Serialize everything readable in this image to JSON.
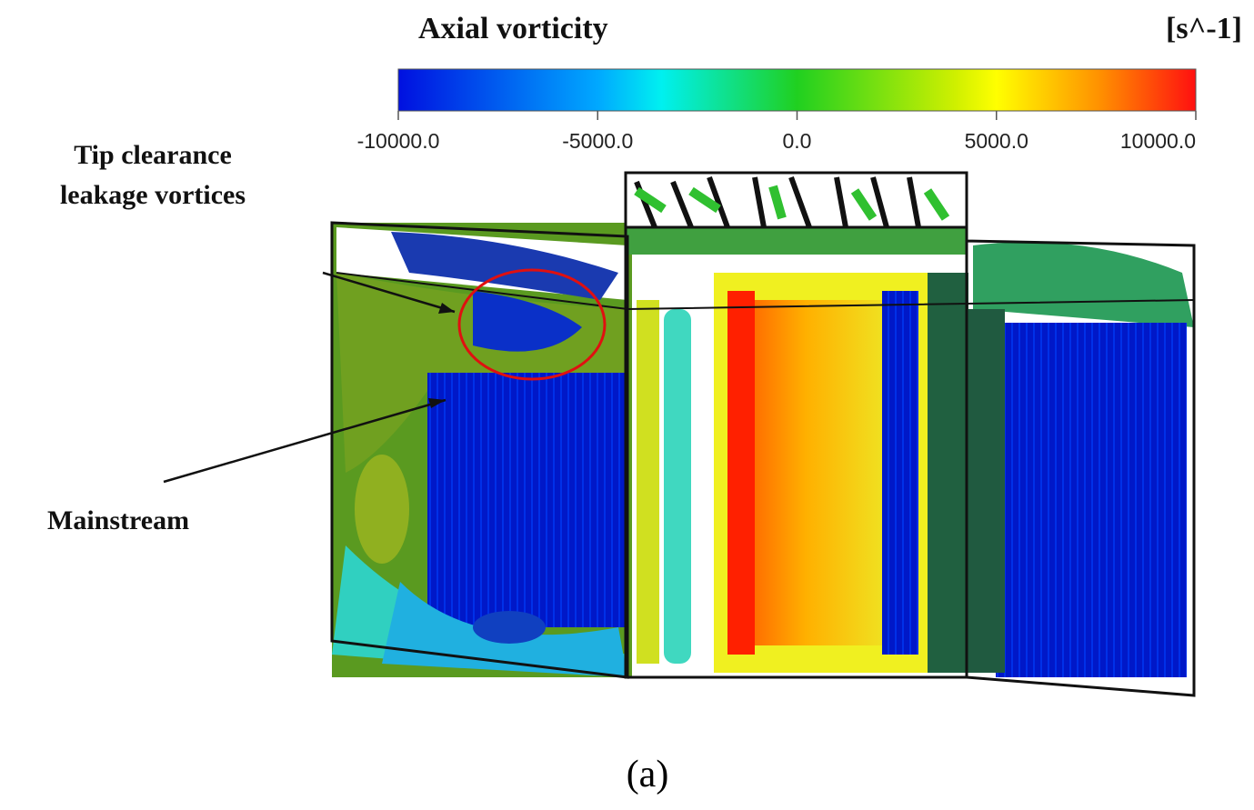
{
  "colorbar": {
    "title": "Axial vorticity",
    "unit": "[s^-1]",
    "lim": [
      -10000,
      10000
    ],
    "ticks": [
      {
        "value": -10000,
        "label": "-10000.0"
      },
      {
        "value": -5000,
        "label": "-5000.0"
      },
      {
        "value": 0,
        "label": "0.0"
      },
      {
        "value": 5000,
        "label": "5000.0"
      },
      {
        "value": 10000,
        "label": "10000.0"
      }
    ]
  },
  "annotations": {
    "tip_clearance": [
      "Tip clearance",
      "leakage vortices"
    ],
    "mainstream": "Mainstream"
  },
  "caption": "(a)"
}
